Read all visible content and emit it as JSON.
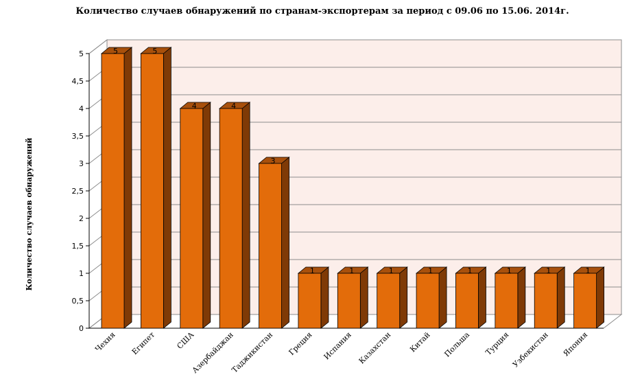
{
  "chart_data": {
    "type": "bar",
    "title": "Количество случаев обнаружений по странам-экспортерам за период с 09.06 по 15.06. 2014г.",
    "xlabel": "",
    "ylabel": "Количество случаев обнаружений",
    "ylim": [
      0,
      5
    ],
    "yticks": [
      "0",
      "0,5",
      "1",
      "1,5",
      "2",
      "2,5",
      "3",
      "3,5",
      "4",
      "4,5",
      "5"
    ],
    "categories": [
      "Чехия",
      "Египет",
      "США",
      "Азербайджан",
      "Таджикистан",
      "Греция",
      "Испания",
      "Казахстан",
      "Китай",
      "Польша",
      "Турция",
      "Узбекистан",
      "Япония"
    ],
    "values": [
      5,
      5,
      4,
      4,
      3,
      1,
      1,
      1,
      1,
      1,
      1,
      1,
      1
    ],
    "grid": true,
    "legend": "none",
    "colors": {
      "bar_front": "#E36C0A",
      "bar_side": "#7F3A06",
      "bar_top": "#A8500C",
      "plot_background": "#FCEEEA",
      "grid": "#8C8C8C"
    }
  }
}
